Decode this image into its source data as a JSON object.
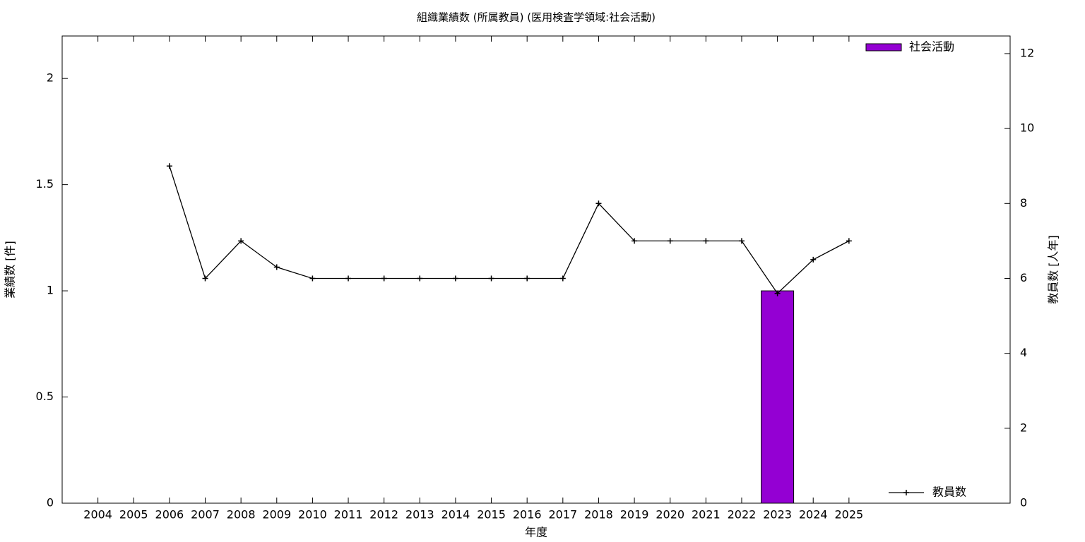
{
  "chart_data": {
    "type": "bar",
    "title": "組織業績数 (所属教員) (医用検査学領域:社会活動)",
    "xlabel": "年度",
    "ylabel": "業績数 [件]",
    "y2label": "教員数 [人年]",
    "categories": [
      "2004",
      "2005",
      "2006",
      "2007",
      "2008",
      "2009",
      "2010",
      "2011",
      "2012",
      "2013",
      "2014",
      "2015",
      "2016",
      "2017",
      "2018",
      "2019",
      "2020",
      "2021",
      "2022",
      "2023",
      "2024",
      "2025"
    ],
    "series": [
      {
        "name": "社会活動",
        "type": "bar",
        "color": "#9400d3",
        "values": [
          0,
          0,
          0,
          0,
          0,
          0,
          0,
          0,
          0,
          0,
          0,
          0,
          0,
          0,
          0,
          0,
          0,
          0,
          0,
          1,
          0,
          0
        ]
      },
      {
        "name": "教員数",
        "type": "line",
        "axis": "y2",
        "color": "#000000",
        "values": [
          null,
          null,
          9,
          6,
          7,
          6.3,
          6,
          6,
          6,
          6,
          6,
          6,
          6,
          6,
          8,
          7,
          7,
          7,
          7,
          5.6,
          6.5,
          7
        ]
      }
    ],
    "ylim": [
      0,
      2.2
    ],
    "yticks": [
      0,
      0.5,
      1,
      1.5,
      2
    ],
    "y2lim": [
      0,
      12.47
    ],
    "y2ticks": [
      0,
      2,
      4,
      6,
      8,
      10,
      12
    ]
  }
}
